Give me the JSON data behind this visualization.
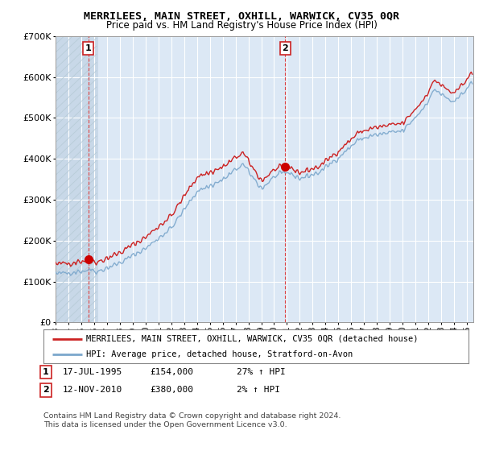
{
  "title": "MERRILEES, MAIN STREET, OXHILL, WARWICK, CV35 0QR",
  "subtitle": "Price paid vs. HM Land Registry's House Price Index (HPI)",
  "hpi_line_color": "#7ba7cc",
  "property_line_color": "#cc2222",
  "marker_color": "#cc0000",
  "vline_color": "#dd4444",
  "sale1_date": "17-JUL-1995",
  "sale1_price": 154000,
  "sale1_hpi_pct": "27% ↑ HPI",
  "sale2_date": "12-NOV-2010",
  "sale2_price": 380000,
  "sale2_hpi_pct": "2% ↑ HPI",
  "legend_property": "MERRILEES, MAIN STREET, OXHILL, WARWICK, CV35 0QR (detached house)",
  "legend_hpi": "HPI: Average price, detached house, Stratford-on-Avon",
  "copyright": "Contains HM Land Registry data © Crown copyright and database right 2024.\nThis data is licensed under the Open Government Licence v3.0.",
  "ylim": [
    0,
    700000
  ],
  "yticks": [
    0,
    100000,
    200000,
    300000,
    400000,
    500000,
    600000,
    700000
  ],
  "xmin": 1993.0,
  "xmax": 2025.5,
  "sale1_x": 1995.54,
  "sale2_x": 2010.87,
  "plot_bg_color": "#dce8f5",
  "hatch_bg_color": "#c8d8e8"
}
